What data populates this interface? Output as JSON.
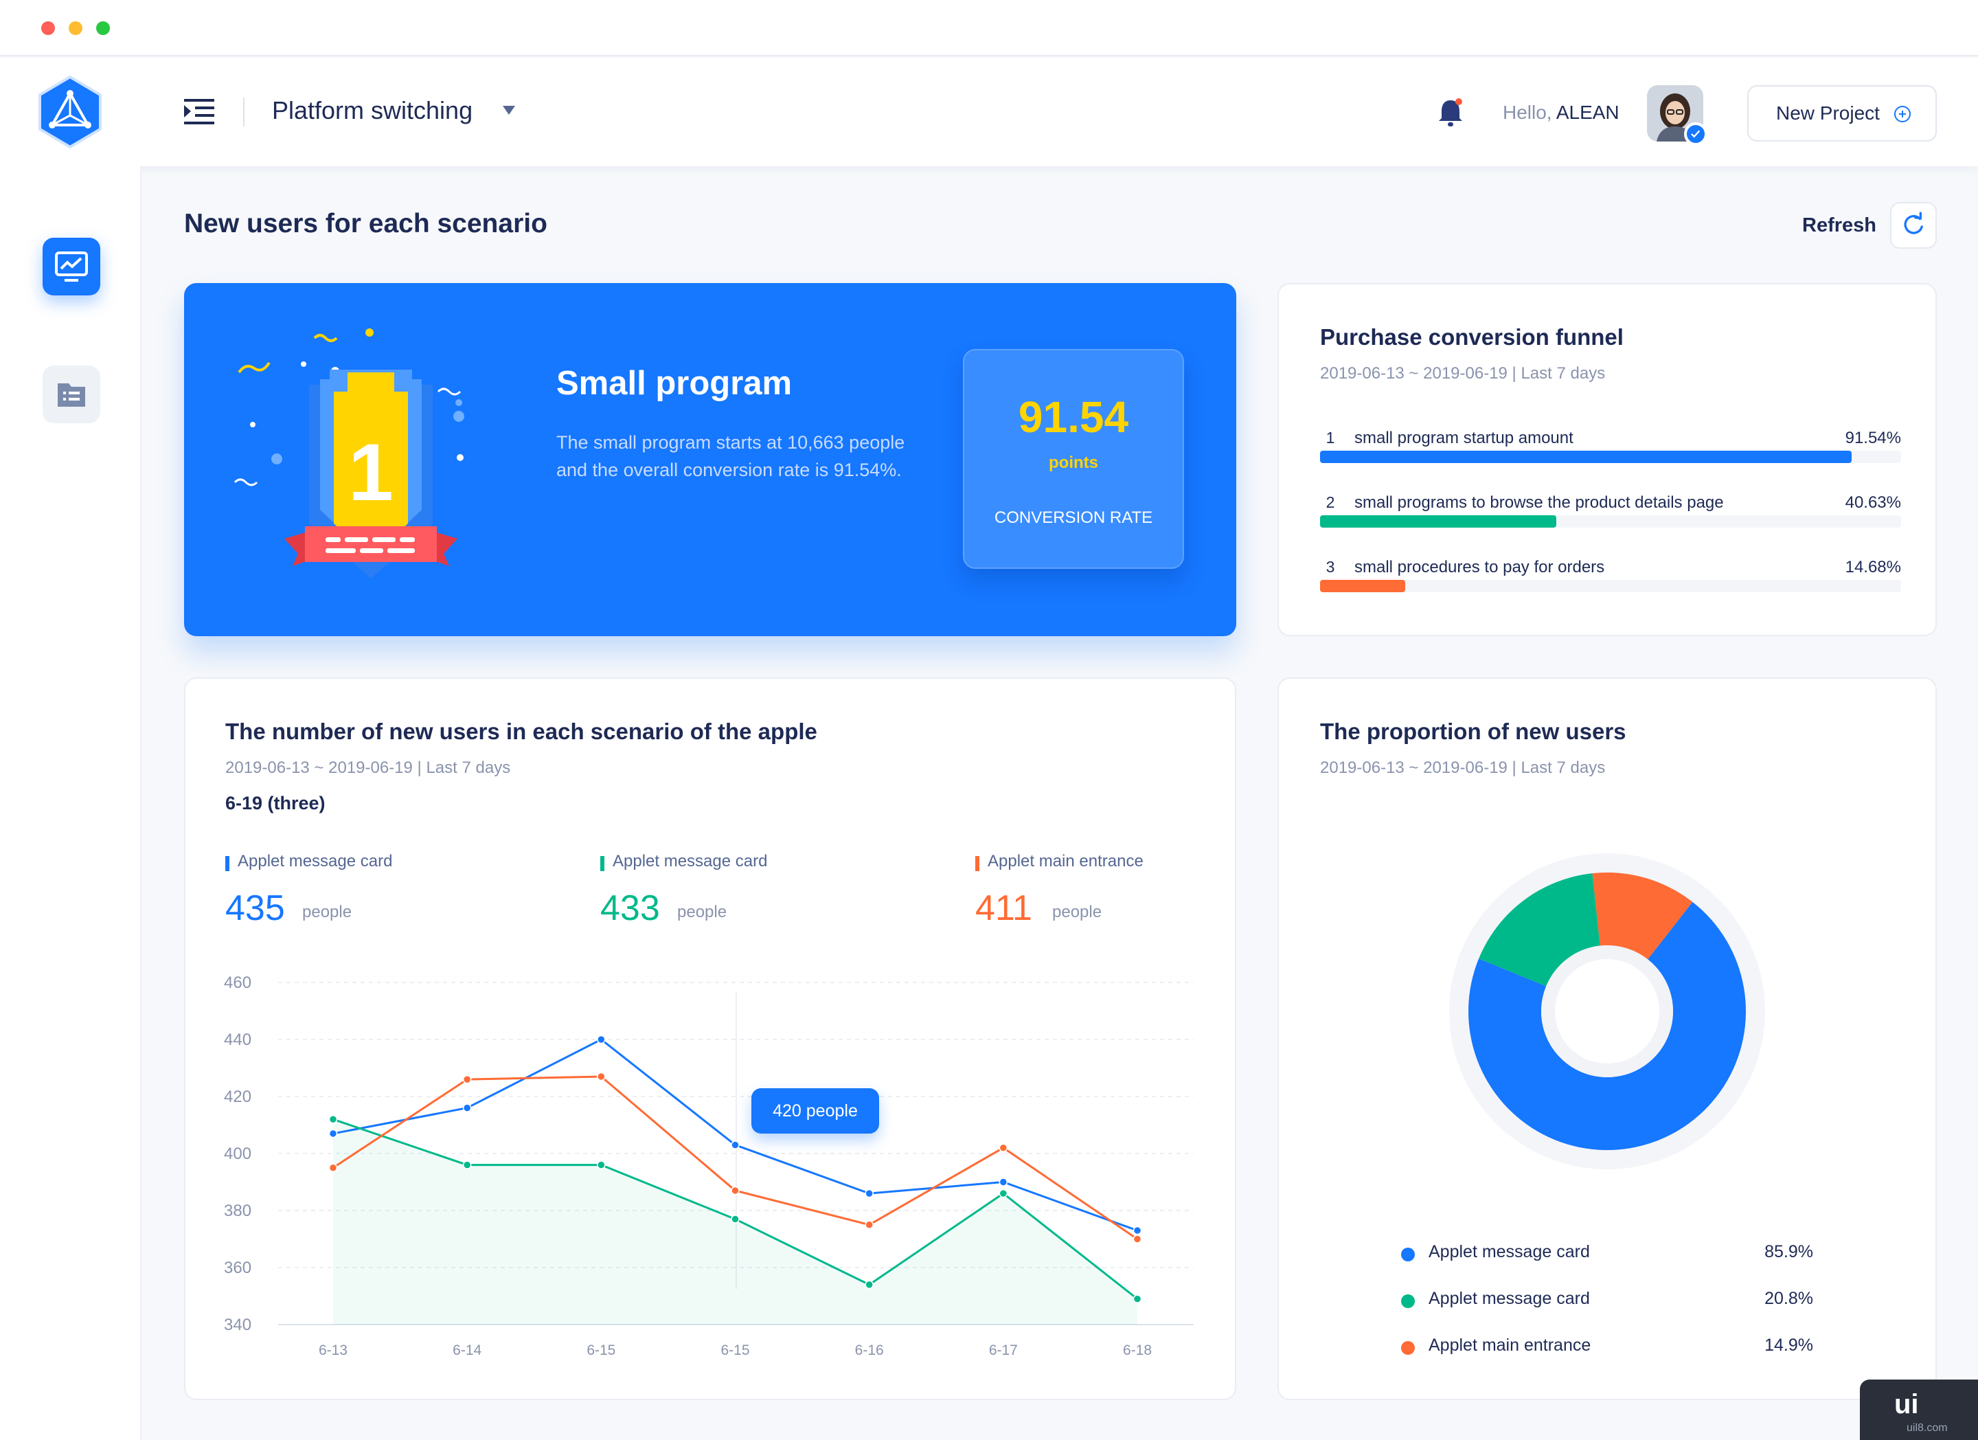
{
  "header": {
    "platform_label": "Platform switching",
    "hello_prefix": "Hello,",
    "hello_name": "ALEAN",
    "new_project_label": "New Project"
  },
  "page": {
    "title": "New users for each scenario",
    "refresh_label": "Refresh"
  },
  "hero": {
    "badge_number": "1",
    "title": "Small program",
    "description": "The small program starts at 10,663 people and the overall conversion rate is 91.54%.",
    "score": "91.54",
    "score_unit": "points",
    "score_label": "CONVERSION RATE"
  },
  "funnel": {
    "title": "Purchase conversion funnel",
    "subtitle": "2019-06-13 ~ 2019-06-19 | Last 7 days",
    "items": [
      {
        "num": "1",
        "label": "small program startup amount",
        "pct_text": "91.54%",
        "pct": 91.54,
        "color": "#1677ff"
      },
      {
        "num": "2",
        "label": "small programs to browse the product details page",
        "pct_text": "40.63%",
        "pct": 40.63,
        "color": "#00b98a"
      },
      {
        "num": "3",
        "label": "small procedures to pay for orders",
        "pct_text": "14.68%",
        "pct": 14.68,
        "color": "#ff6b35"
      }
    ]
  },
  "line_card": {
    "title": "The number of new users in each scenario of the apple",
    "subtitle": "2019-06-13 ~ 2019-06-19 | Last 7 days",
    "selected_label": "6-19 (three)",
    "legend": [
      {
        "name": "Applet message card",
        "value": "435",
        "unit": "people",
        "color": "#1677ff"
      },
      {
        "name": "Applet message card",
        "value": "433",
        "unit": "people",
        "color": "#00b98a"
      },
      {
        "name": "Applet main entrance",
        "value": "411",
        "unit": "people",
        "color": "#ff6b35"
      }
    ],
    "tooltip": "420 people"
  },
  "chart_data": [
    {
      "type": "line",
      "x": [
        "6-13",
        "6-14",
        "6-15",
        "6-15",
        "6-16",
        "6-17",
        "6-18"
      ],
      "ylim": [
        340,
        460
      ],
      "yticks": [
        "460",
        "440",
        "420",
        "400",
        "380",
        "360",
        "340"
      ],
      "series": [
        {
          "name": "Applet message card",
          "color": "#1677ff",
          "values": [
            407,
            416,
            440,
            403,
            386,
            390,
            373
          ]
        },
        {
          "name": "Applet message card",
          "color": "#00b98a",
          "values": [
            412,
            396,
            396,
            377,
            354,
            386,
            349
          ]
        },
        {
          "name": "Applet main entrance",
          "color": "#ff6b35",
          "values": [
            395,
            426,
            427,
            387,
            375,
            402,
            370
          ]
        }
      ]
    },
    {
      "type": "pie",
      "title": "The proportion of new users",
      "subtitle": "2019-06-13 ~ 2019-06-19 | Last 7 days",
      "slices": [
        {
          "name": "Applet message card",
          "value_text": "85.9%",
          "value": 85.9,
          "color": "#1677ff"
        },
        {
          "name": "Applet message card",
          "value_text": "20.8%",
          "value": 20.8,
          "color": "#00b98a"
        },
        {
          "name": "Applet main entrance",
          "value_text": "14.9%",
          "value": 14.9,
          "color": "#ff6b35"
        }
      ]
    }
  ],
  "watermark": {
    "text": "ui",
    "sub": "uil8.com"
  }
}
